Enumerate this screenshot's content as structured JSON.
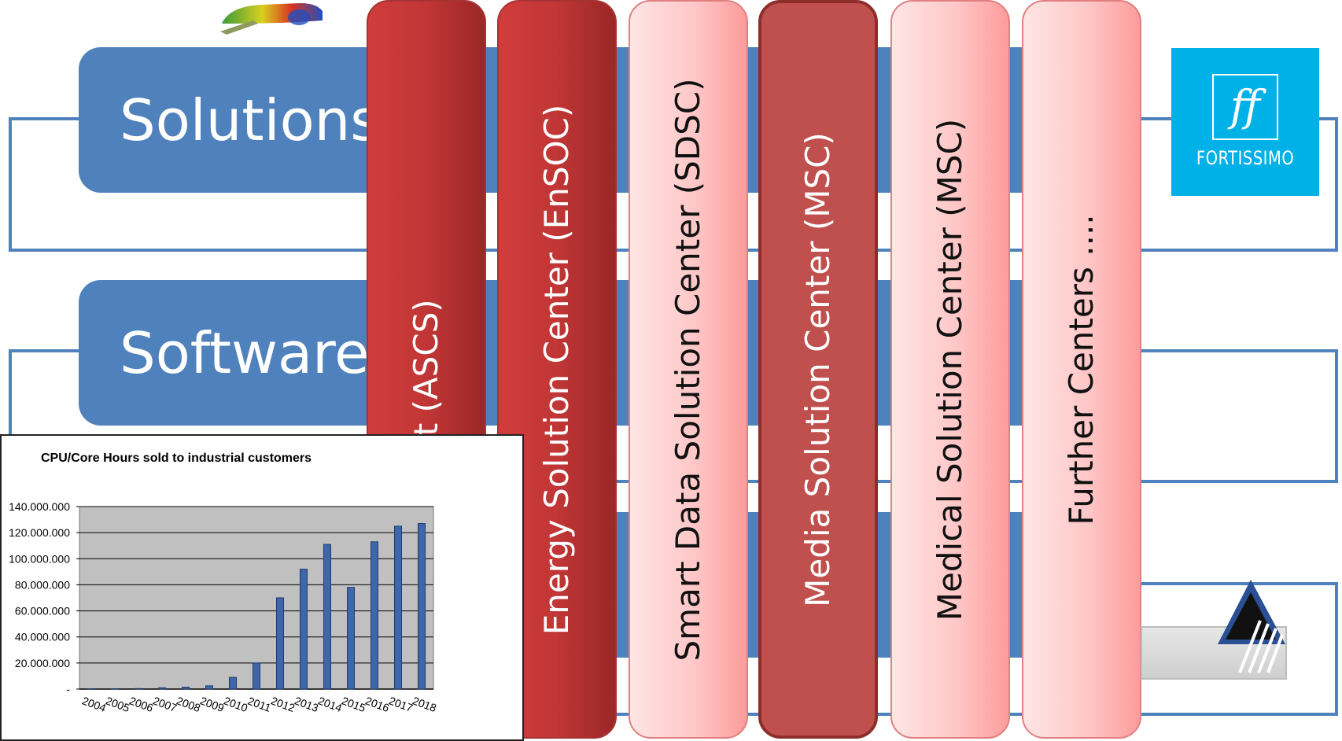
{
  "rows": {
    "solutions": "Solutions",
    "software": "Software"
  },
  "centers": [
    {
      "label": "on Center Stuttgart (ASCS)"
    },
    {
      "label": "Energy Solution Center (EnSOC)"
    },
    {
      "label": "Smart Data Solution Center (SDSC)"
    },
    {
      "label": "Media Solution Center (MSC)"
    },
    {
      "label": "Medical Solution Center (MSC)"
    },
    {
      "label": "Further Centers ...."
    }
  ],
  "logo": {
    "mark": "ff",
    "name": "FORTISSIMO",
    "color": "#00b1e8"
  },
  "colors": {
    "accent_blue": "#4f81bd",
    "dark_red": "#c0504d",
    "chart_bar": "#3e66a8",
    "chart_bg": "#c0c0c0"
  },
  "chart_data": {
    "type": "bar",
    "title": "CPU/Core Hours sold to industrial customers",
    "categories": [
      "2004",
      "2005",
      "2006",
      "2007",
      "2008",
      "2009",
      "2010",
      "2011",
      "2012",
      "2013",
      "2014",
      "2015",
      "2016",
      "2017",
      "2018"
    ],
    "values": [
      200000,
      300000,
      400000,
      1000000,
      1500000,
      2500000,
      9000000,
      20000000,
      70000000,
      92000000,
      111000000,
      78000000,
      113000000,
      125000000,
      127000000
    ],
    "ylim": [
      0,
      140000000
    ],
    "yticks": [
      "-",
      "20.000.000",
      "40.000.000",
      "60.000.000",
      "80.000.000",
      "100.000.000",
      "120.000.000",
      "140.000.000"
    ],
    "grid": true,
    "xlabel": "",
    "ylabel": ""
  }
}
